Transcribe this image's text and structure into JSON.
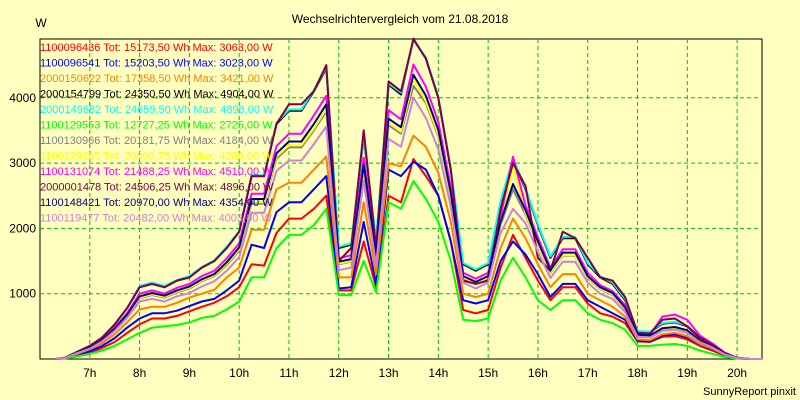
{
  "chart_data": {
    "type": "line",
    "title": "Wechselrichtervergleich vom 21.08.2018",
    "ylabel": "W",
    "footer": "SunnyReport pinxit",
    "xlim": [
      6.0,
      20.5
    ],
    "ylim": [
      0,
      4900
    ],
    "x_ticks": [
      7,
      8,
      9,
      10,
      11,
      12,
      13,
      14,
      15,
      16,
      17,
      18,
      19,
      20
    ],
    "x_tick_labels": [
      "7h",
      "8h",
      "9h",
      "10h",
      "11h",
      "12h",
      "13h",
      "14h",
      "15h",
      "16h",
      "17h",
      "18h",
      "19h",
      "20h"
    ],
    "y_ticks": [
      1000,
      2000,
      3000,
      4000
    ],
    "y_tick_labels": [
      "1000",
      "2000",
      "3000",
      "4000"
    ],
    "grid": true,
    "legend_position": "top-left",
    "x": [
      6.33,
      6.5,
      6.75,
      7.0,
      7.25,
      7.5,
      7.75,
      8.0,
      8.25,
      8.5,
      8.75,
      9.0,
      9.25,
      9.5,
      9.75,
      10.0,
      10.25,
      10.5,
      10.75,
      11.0,
      11.25,
      11.5,
      11.75,
      12.0,
      12.25,
      12.5,
      12.75,
      13.0,
      13.25,
      13.5,
      13.75,
      14.0,
      14.25,
      14.5,
      14.75,
      15.0,
      15.25,
      15.5,
      15.75,
      16.0,
      16.25,
      16.5,
      16.75,
      17.0,
      17.25,
      17.5,
      17.75,
      18.0,
      18.25,
      18.5,
      18.75,
      19.0,
      19.25,
      19.5,
      19.75,
      20.0,
      20.25,
      20.5
    ],
    "series": [
      {
        "name": "1100096436 Tot: 15173,50 Wh Max: 3063,00 W",
        "color": "#ff0000",
        "values": [
          0,
          10,
          60,
          100,
          170,
          260,
          400,
          530,
          620,
          620,
          660,
          730,
          800,
          860,
          960,
          1100,
          1450,
          1430,
          1930,
          2150,
          2150,
          2300,
          2500,
          1050,
          1050,
          1800,
          1100,
          2500,
          2400,
          3063,
          2800,
          2500,
          1800,
          750,
          700,
          750,
          1400,
          1900,
          1550,
          1200,
          900,
          1100,
          1100,
          850,
          700,
          650,
          550,
          270,
          260,
          340,
          350,
          300,
          200,
          130,
          50,
          10,
          0,
          0
        ]
      },
      {
        "name": "1100096541 Tot: 15203,50 Wh Max: 3023,00 W",
        "color": "#0000ff",
        "values": [
          0,
          12,
          70,
          120,
          200,
          320,
          480,
          620,
          700,
          700,
          740,
          810,
          880,
          920,
          1050,
          1200,
          1750,
          1700,
          2250,
          2400,
          2400,
          2600,
          2800,
          1080,
          1100,
          2100,
          1150,
          2900,
          2800,
          3023,
          2900,
          2500,
          1800,
          900,
          850,
          900,
          1500,
          1800,
          1600,
          1300,
          950,
          1150,
          1150,
          900,
          800,
          700,
          600,
          280,
          270,
          360,
          380,
          330,
          220,
          150,
          60,
          12,
          0,
          0
        ]
      },
      {
        "name": "2000150622 Tot: 17358,50 Wh Max: 3421,00 W",
        "color": "#ff8000",
        "values": [
          0,
          14,
          80,
          150,
          240,
          380,
          560,
          760,
          800,
          800,
          860,
          940,
          1000,
          1060,
          1250,
          1400,
          1980,
          1980,
          2600,
          2700,
          2700,
          2900,
          3100,
          1250,
          1250,
          2400,
          1300,
          3000,
          2950,
          3421,
          3250,
          2850,
          2100,
          1000,
          950,
          1000,
          1700,
          2150,
          1850,
          1450,
          1100,
          1300,
          1300,
          1000,
          900,
          800,
          650,
          300,
          290,
          380,
          400,
          350,
          230,
          160,
          65,
          14,
          0,
          0
        ]
      },
      {
        "name": "2000154799 Tot: 24350,50 Wh Max: 4904,00 W",
        "color": "#000000",
        "values": [
          0,
          18,
          110,
          200,
          330,
          530,
          780,
          1100,
          1150,
          1100,
          1200,
          1250,
          1400,
          1500,
          1700,
          1950,
          2800,
          2800,
          3600,
          3800,
          3800,
          4100,
          4450,
          1700,
          1750,
          3400,
          1800,
          4200,
          4050,
          4904,
          4600,
          4000,
          2900,
          1450,
          1350,
          1450,
          2400,
          3050,
          2600,
          2050,
          1550,
          1850,
          1850,
          1450,
          1250,
          1150,
          900,
          420,
          410,
          540,
          560,
          500,
          320,
          220,
          90,
          18,
          0,
          0
        ]
      },
      {
        "name": "2000149682 Tot: 24659,50 Wh Max: 4896,00 W",
        "color": "#00ffff",
        "values": [
          0,
          18,
          110,
          200,
          330,
          530,
          780,
          1120,
          1170,
          1120,
          1210,
          1270,
          1410,
          1510,
          1720,
          1960,
          2820,
          2810,
          3620,
          3820,
          3820,
          4120,
          4470,
          1720,
          1770,
          3420,
          1820,
          4220,
          4080,
          4896,
          4620,
          4020,
          2920,
          1470,
          1370,
          1470,
          2420,
          3080,
          2620,
          2070,
          1570,
          1870,
          1870,
          1470,
          1270,
          1170,
          920,
          430,
          420,
          550,
          570,
          510,
          330,
          230,
          95,
          18,
          0,
          0
        ]
      },
      {
        "name": "1100129553 Tot: 12727,25 Wh Max: 2725,00 W",
        "color": "#00ff00",
        "values": [
          0,
          8,
          40,
          80,
          130,
          200,
          300,
          400,
          480,
          500,
          520,
          560,
          630,
          660,
          760,
          880,
          1250,
          1250,
          1700,
          1900,
          1900,
          2050,
          2300,
          980,
          980,
          1500,
          1020,
          2400,
          2300,
          2725,
          2450,
          2100,
          1500,
          600,
          580,
          620,
          1200,
          1550,
          1250,
          900,
          750,
          900,
          900,
          700,
          600,
          550,
          450,
          200,
          200,
          220,
          230,
          200,
          130,
          80,
          30,
          8,
          0,
          0
        ]
      },
      {
        "name": "1100130966 Tot: 20181,75 Wh Max: 4184,00 W",
        "color": "#808080",
        "values": [
          0,
          16,
          90,
          170,
          280,
          450,
          660,
          930,
          980,
          940,
          1020,
          1080,
          1190,
          1270,
          1440,
          1660,
          2380,
          2380,
          3070,
          3240,
          3240,
          3500,
          3790,
          1450,
          1490,
          2900,
          1530,
          3580,
          3450,
          4184,
          3920,
          3410,
          2470,
          1240,
          1150,
          1240,
          2050,
          2600,
          2210,
          1750,
          1320,
          1580,
          1580,
          1240,
          1070,
          980,
          770,
          360,
          350,
          460,
          480,
          430,
          270,
          190,
          77,
          16,
          0,
          0
        ]
      },
      {
        "name": "1100129695 Tot: 20066,75 Wh Max: 4286,00 W",
        "color": "#ffff00",
        "values": [
          0,
          16,
          90,
          170,
          280,
          450,
          660,
          940,
          990,
          950,
          1030,
          1090,
          1200,
          1280,
          1460,
          1680,
          2400,
          2400,
          3100,
          3270,
          3270,
          3530,
          3830,
          1460,
          1500,
          2920,
          1550,
          3610,
          3480,
          4286,
          3950,
          3440,
          2490,
          1250,
          1160,
          1250,
          2070,
          2960,
          2230,
          1760,
          1330,
          1590,
          1590,
          1250,
          1080,
          990,
          780,
          360,
          350,
          460,
          480,
          430,
          280,
          190,
          78,
          16,
          0,
          0
        ]
      },
      {
        "name": "1100131074 Tot: 21488,25 Wh Max: 4510,00 W",
        "color": "#ff00ff",
        "values": [
          0,
          17,
          100,
          180,
          300,
          480,
          700,
          1000,
          1050,
          1000,
          1090,
          1150,
          1270,
          1350,
          1540,
          1770,
          2530,
          2530,
          3260,
          3450,
          3450,
          3730,
          4030,
          1540,
          1590,
          3080,
          1630,
          3810,
          3670,
          4510,
          4170,
          3630,
          2630,
          1320,
          1230,
          1320,
          2180,
          3100,
          2350,
          1860,
          1400,
          1680,
          1680,
          1320,
          1130,
          1040,
          820,
          380,
          370,
          650,
          680,
          600,
          360,
          240,
          100,
          17,
          0,
          0
        ]
      },
      {
        "name": "2000001478 Tot: 24506,25 Wh Max: 4896,00 W",
        "color": "#800040",
        "values": [
          0,
          18,
          110,
          200,
          330,
          530,
          780,
          1100,
          1150,
          1100,
          1200,
          1250,
          1400,
          1500,
          1700,
          1950,
          2800,
          2800,
          3600,
          3900,
          3900,
          4100,
          4500,
          1500,
          1700,
          3500,
          1700,
          4250,
          4100,
          4896,
          4600,
          4000,
          2900,
          1200,
          1150,
          1200,
          2300,
          3000,
          2650,
          1550,
          1350,
          1950,
          1850,
          1550,
          1250,
          1200,
          950,
          400,
          390,
          600,
          620,
          500,
          330,
          220,
          90,
          18,
          0,
          0
        ]
      },
      {
        "name": "1100148421 Tot: 20970,00 Wh Max: 4354,00 W",
        "color": "#000080",
        "values": [
          0,
          16,
          95,
          175,
          290,
          465,
          680,
          960,
          1010,
          970,
          1050,
          1110,
          1220,
          1300,
          1480,
          1710,
          2450,
          2450,
          3150,
          3330,
          3330,
          3600,
          3900,
          1490,
          1530,
          2980,
          1580,
          3680,
          3550,
          4354,
          4030,
          3510,
          2540,
          1270,
          1180,
          1270,
          2100,
          2680,
          2280,
          1800,
          1360,
          1630,
          1630,
          1270,
          1100,
          1010,
          790,
          370,
          360,
          470,
          490,
          440,
          280,
          200,
          80,
          16,
          0,
          0
        ]
      },
      {
        "name": "1100119477 Tot: 20482,00 Wh Max: 4003,00 W",
        "color": "#d080d0",
        "values": [
          0,
          15,
          90,
          160,
          270,
          430,
          630,
          880,
          920,
          880,
          960,
          1010,
          1110,
          1190,
          1350,
          1560,
          2240,
          2240,
          2880,
          3040,
          3040,
          3290,
          3560,
          1360,
          1400,
          2730,
          1440,
          3370,
          3250,
          4003,
          3690,
          3210,
          2330,
          1170,
          1080,
          1170,
          1930,
          2300,
          2080,
          1640,
          1240,
          1490,
          1490,
          1170,
          1000,
          920,
          720,
          340,
          330,
          430,
          450,
          400,
          260,
          180,
          72,
          15,
          0,
          0
        ]
      }
    ]
  }
}
